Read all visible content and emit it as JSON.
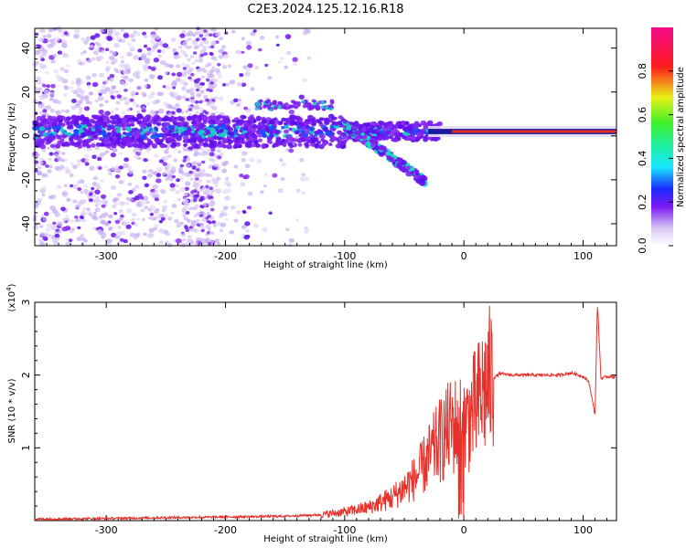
{
  "title": "C2E3.2024.125.12.16.R18",
  "colors": {
    "snr_line": "#e8302a",
    "axis": "#000000",
    "dots_light": "#d8c8f4",
    "dots_dark": "#6a1cf0",
    "band_core": "#18c8a8"
  },
  "chart_data": [
    {
      "type": "heatmap",
      "name": "spectrogram",
      "xlabel": "Height of straight line (km)",
      "ylabel": "Frequency (Hz)",
      "xlim": [
        -360,
        128
      ],
      "ylim": [
        -50,
        49
      ],
      "x_ticks": [
        -300,
        -200,
        -100,
        0,
        100
      ],
      "y_ticks": [
        -40,
        -20,
        0,
        20,
        40
      ],
      "colorbar": {
        "label": "Normalized spectral amplitude",
        "range": [
          0,
          1
        ],
        "ticks": [
          0.0,
          0.2,
          0.4,
          0.6,
          0.8
        ],
        "colormap": "rainbow (white-violet-blue-cyan-green-yellow-red-magenta)"
      },
      "features": [
        {
          "description": "main frequency band",
          "x_range": [
            -360,
            128
          ],
          "center_freq_hz": 2
        },
        {
          "description": "diagonal descending track",
          "x_start": -100,
          "freq_start": 5,
          "x_end": -32,
          "freq_end": -21
        },
        {
          "description": "upper track",
          "x_range": [
            -175,
            -110
          ],
          "freq_hz": 14
        }
      ]
    },
    {
      "type": "line",
      "name": "snr",
      "xlabel": "Height of straight line (km)",
      "ylabel": "SNR (10 * v/v)",
      "y_multiplier_label": "(x10",
      "y_multiplier_exp": "4",
      "y_multiplier_close": ")",
      "xlim": [
        -360,
        128
      ],
      "ylim": [
        0,
        3
      ],
      "x_ticks": [
        -300,
        -200,
        -100,
        0,
        100
      ],
      "y_ticks": [
        1,
        2,
        3
      ],
      "series": [
        {
          "x": [
            -360,
            -300,
            -250,
            -200,
            -150,
            -120,
            -100,
            -80,
            -60,
            -50,
            -40,
            -30,
            -20,
            -10,
            0,
            10,
            20,
            30,
            40,
            60,
            80,
            90,
            100,
            105,
            110,
            112,
            115,
            120,
            128
          ],
          "y": [
            0.02,
            0.03,
            0.04,
            0.05,
            0.06,
            0.08,
            0.12,
            0.18,
            0.32,
            0.45,
            0.6,
            0.85,
            1.1,
            1.3,
            1.3,
            1.55,
            1.9,
            2.02,
            2.0,
            2.0,
            2.0,
            2.03,
            1.98,
            1.9,
            1.45,
            3.0,
            1.95,
            1.98,
            1.98
          ]
        }
      ]
    }
  ]
}
